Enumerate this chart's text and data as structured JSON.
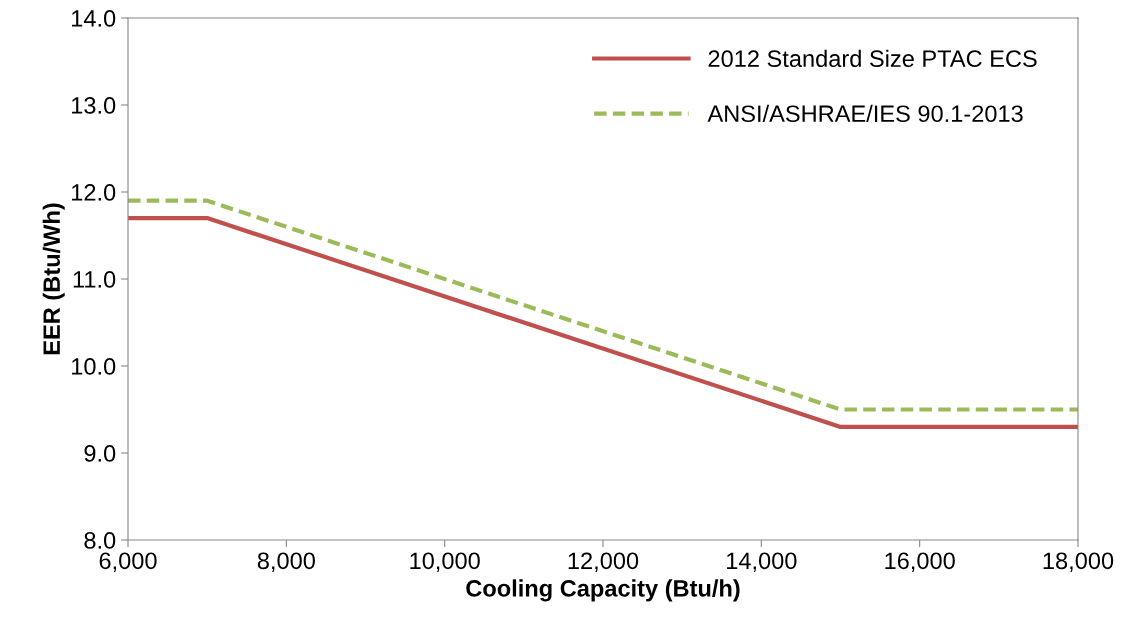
{
  "chart_data": {
    "type": "line",
    "xlabel": "Cooling Capacity (Btu/h)",
    "ylabel": "EER (Btu/Wh)",
    "series": [
      {
        "name": "2012 Standard Size PTAC ECS",
        "color": "#c0504d",
        "x": [
          6000,
          7000,
          15000,
          18000
        ],
        "values": [
          11.7,
          11.7,
          9.3,
          9.3
        ],
        "line_style": "solid"
      },
      {
        "name": "ANSI/ASHRAE/IES 90.1-2013",
        "color": "#9bbb59",
        "x": [
          6000,
          7000,
          15000,
          18000
        ],
        "values": [
          11.9,
          11.9,
          9.5,
          9.5
        ],
        "line_style": "dashed"
      }
    ],
    "xlim": [
      6000,
      18000
    ],
    "xticks": [
      {
        "value": 6000,
        "label": "6,000"
      },
      {
        "value": 8000,
        "label": "8,000"
      },
      {
        "value": 10000,
        "label": "10,000"
      },
      {
        "value": 12000,
        "label": "12,000"
      },
      {
        "value": 14000,
        "label": "14,000"
      },
      {
        "value": 16000,
        "label": "16,000"
      },
      {
        "value": 18000,
        "label": "18,000"
      }
    ],
    "ylim": [
      8,
      14
    ],
    "yticks": [
      {
        "value": 8,
        "label": "8.0"
      },
      {
        "value": 9,
        "label": "9.0"
      },
      {
        "value": 10,
        "label": "10.0"
      },
      {
        "value": 11,
        "label": "11.0"
      },
      {
        "value": 12,
        "label": "12.0"
      },
      {
        "value": 13,
        "label": "13.0"
      },
      {
        "value": 14,
        "label": "14.0"
      }
    ],
    "grid": false,
    "legend": "top right",
    "marker": "none"
  }
}
